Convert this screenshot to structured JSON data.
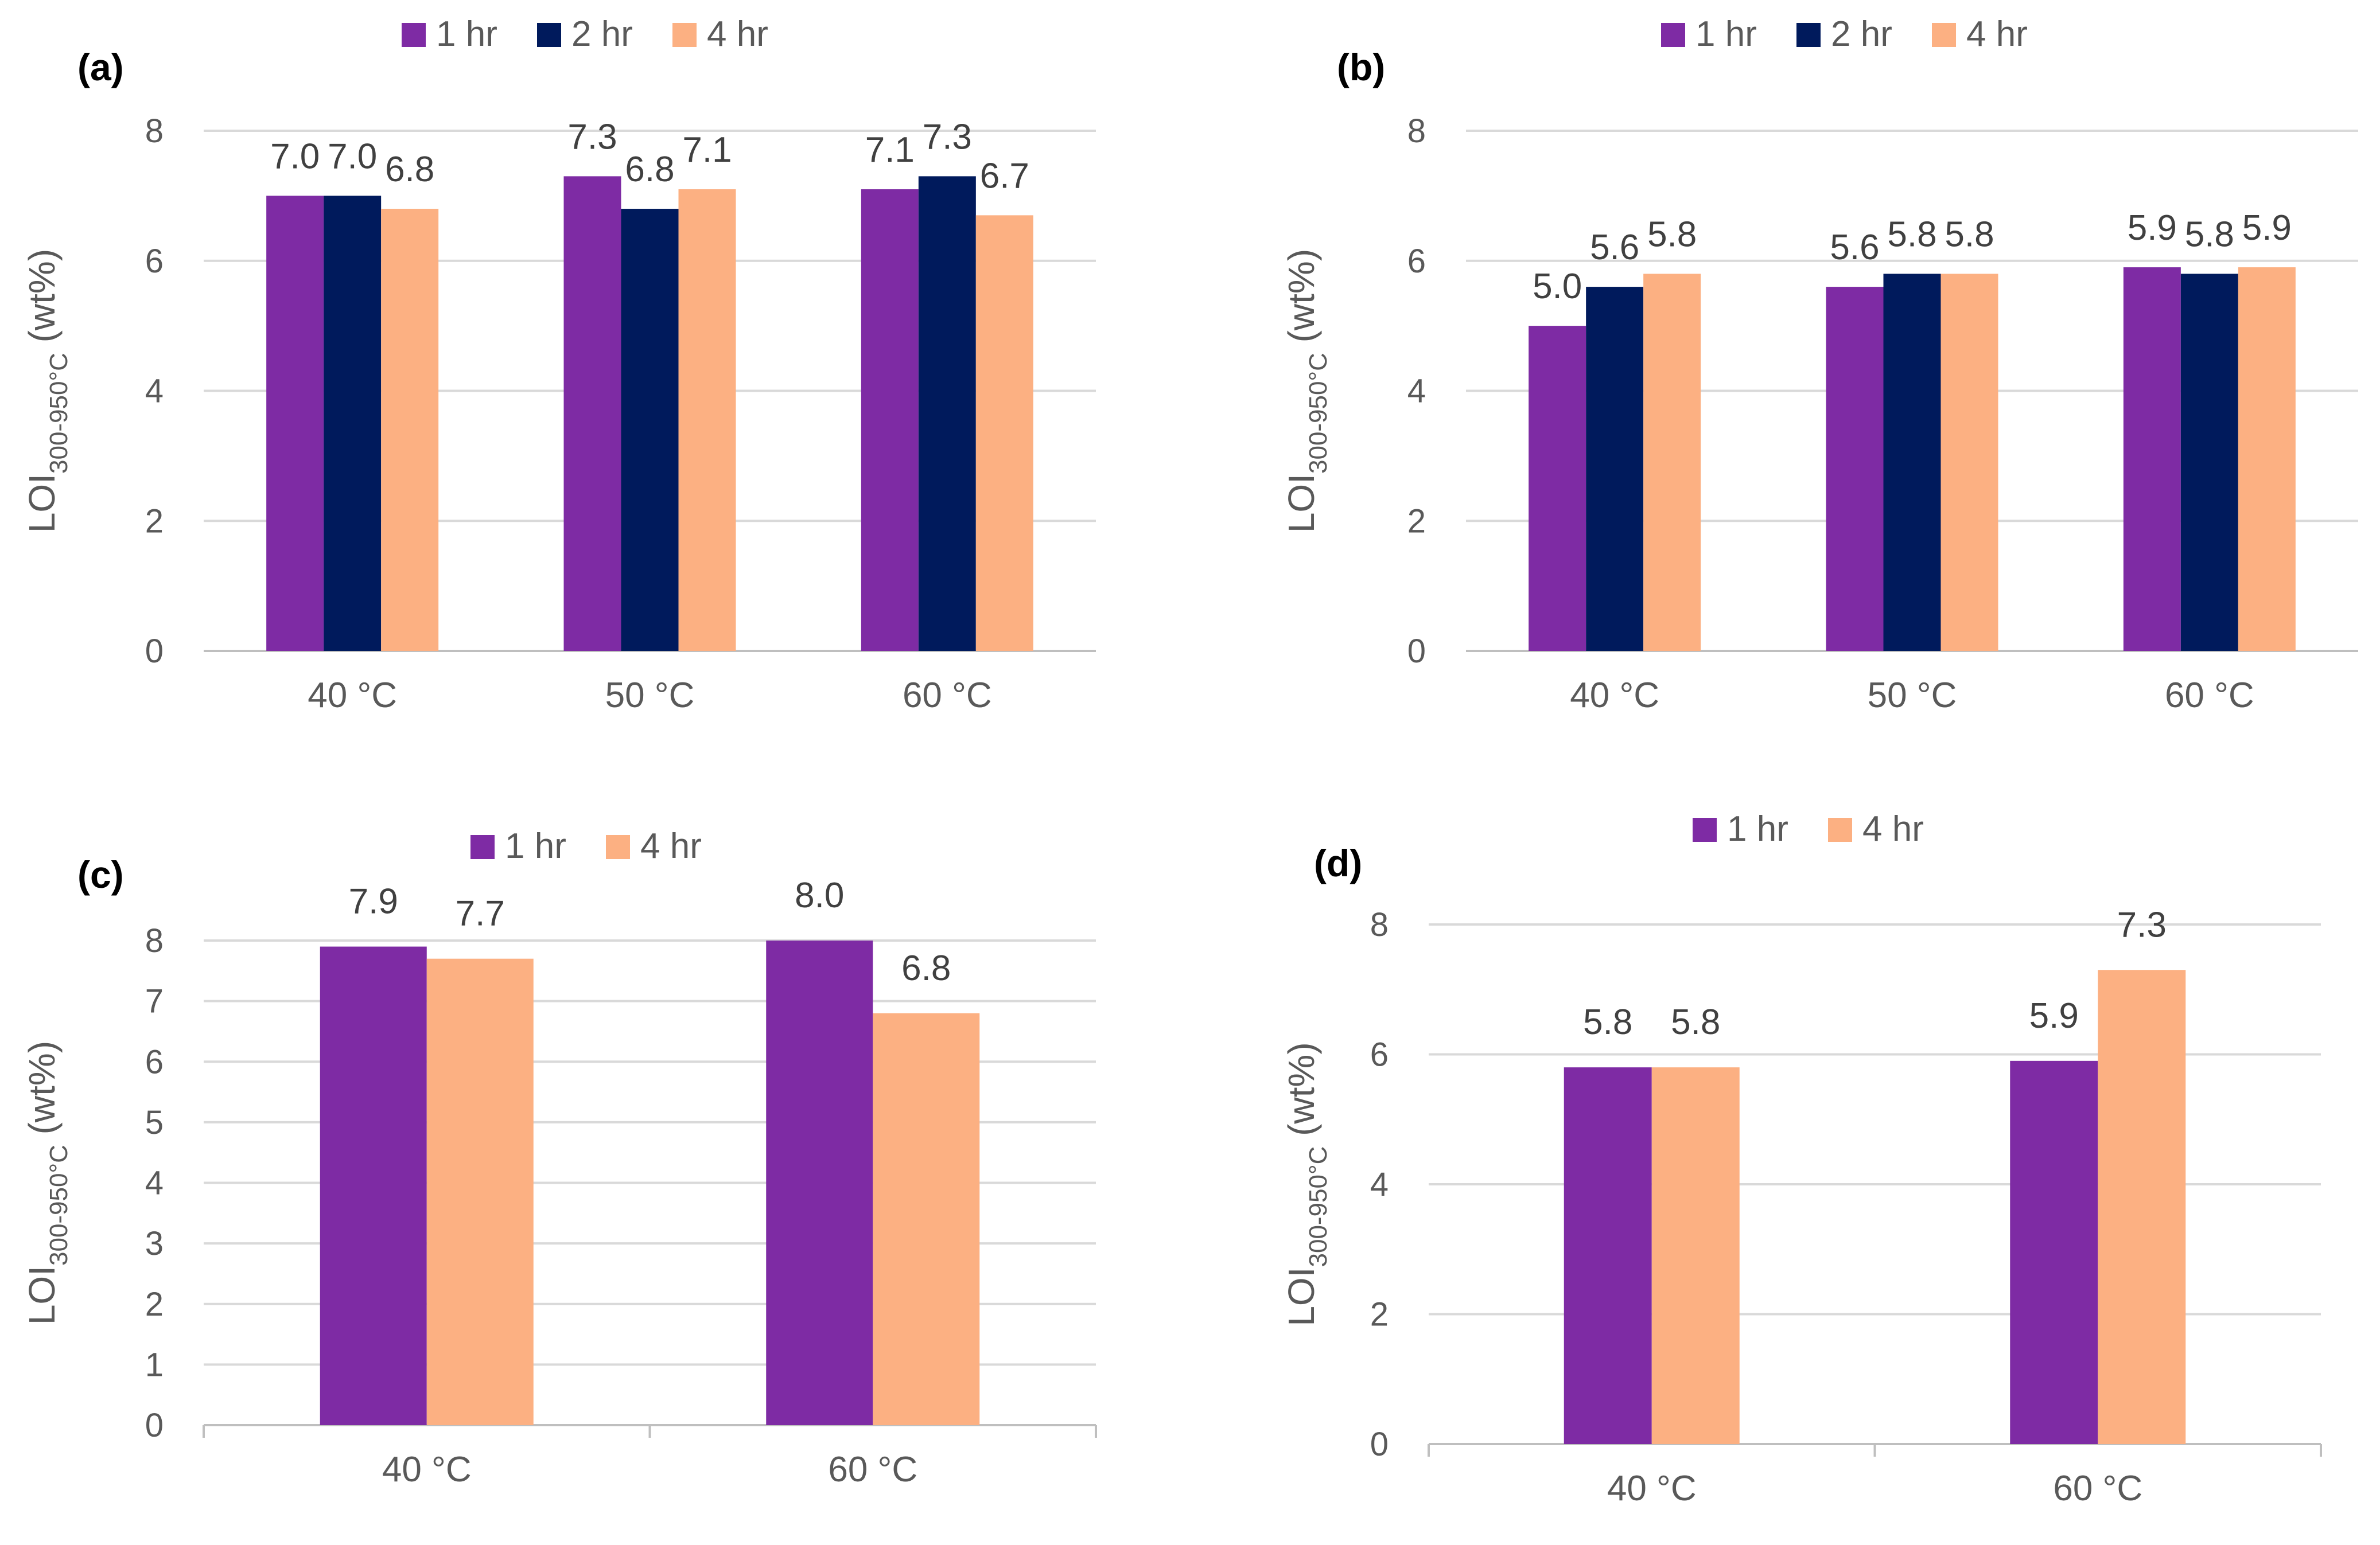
{
  "colors": {
    "1 hr": "#7e2ba4",
    "2 hr": "#001a5c",
    "4 hr": "#fcb082",
    "grid": "#d9d9d9",
    "axis": "#bfbfbf",
    "text": "#595959"
  },
  "chart_data": [
    {
      "type": "bar",
      "panel": "(a)",
      "categories": [
        "40 °C",
        "50 °C",
        "60 °C"
      ],
      "series": [
        {
          "name": "1 hr",
          "values": [
            7.0,
            7.3,
            7.1
          ],
          "labels": [
            "7.0",
            "7.3",
            "7.1"
          ]
        },
        {
          "name": "2 hr",
          "values": [
            7.0,
            6.8,
            7.3
          ],
          "labels": [
            "7.0",
            "6.8",
            "7.3"
          ]
        },
        {
          "name": "4 hr",
          "values": [
            6.8,
            7.1,
            6.7
          ],
          "labels": [
            "6.8",
            "7.1",
            "6.7"
          ]
        }
      ],
      "ylabel_main": "LOI",
      "ylabel_sub": "300-950°C",
      "ylabel_unit": " (wt%)",
      "ylim": [
        0,
        8
      ],
      "yticks": [
        "0",
        "2",
        "4",
        "6",
        "8"
      ],
      "grid": true,
      "legend_position": "top"
    },
    {
      "type": "bar",
      "panel": "(b)",
      "categories": [
        "40 °C",
        "50 °C",
        "60 °C"
      ],
      "series": [
        {
          "name": "1 hr",
          "values": [
            5.0,
            5.6,
            5.9
          ],
          "labels": [
            "5.0",
            "5.6",
            "5.9"
          ]
        },
        {
          "name": "2 hr",
          "values": [
            5.6,
            5.8,
            5.8
          ],
          "labels": [
            "5.6",
            "5.8",
            "5.8"
          ]
        },
        {
          "name": "4 hr",
          "values": [
            5.8,
            5.8,
            5.9
          ],
          "labels": [
            "5.8",
            "5.8",
            "5.9"
          ]
        }
      ],
      "ylabel_main": "LOI",
      "ylabel_sub": "300-950°C",
      "ylabel_unit": " (wt%)",
      "ylim": [
        0,
        8
      ],
      "yticks": [
        "0",
        "2",
        "4",
        "6",
        "8"
      ],
      "grid": true,
      "legend_position": "top"
    },
    {
      "type": "bar",
      "panel": "(c)",
      "categories": [
        "40 °C",
        "60 °C"
      ],
      "series": [
        {
          "name": "1 hr",
          "values": [
            7.9,
            8.0
          ],
          "labels": [
            "7.9",
            "8.0"
          ]
        },
        {
          "name": "4 hr",
          "values": [
            7.7,
            6.8
          ],
          "labels": [
            "7.7",
            "6.8"
          ]
        }
      ],
      "ylabel_main": "LOI",
      "ylabel_sub": "300-950°C",
      "ylabel_unit": " (wt%)",
      "ylim": [
        0,
        8
      ],
      "yticks": [
        "0",
        "1",
        "2",
        "3",
        "4",
        "5",
        "6",
        "7",
        "8"
      ],
      "grid": true,
      "legend_position": "top"
    },
    {
      "type": "bar",
      "panel": "(d)",
      "categories": [
        "40 °C",
        "60 °C"
      ],
      "series": [
        {
          "name": "1 hr",
          "values": [
            5.8,
            5.9
          ],
          "labels": [
            "5.8",
            "5.9"
          ]
        },
        {
          "name": "4 hr",
          "values": [
            5.8,
            7.3
          ],
          "labels": [
            "5.8",
            "7.3"
          ]
        }
      ],
      "ylabel_main": "LOI",
      "ylabel_sub": "300-950°C",
      "ylabel_unit": " (wt%)",
      "ylim": [
        0,
        8
      ],
      "yticks": [
        "0",
        "2",
        "4",
        "6",
        "8"
      ],
      "grid": true,
      "legend_position": "top"
    }
  ]
}
